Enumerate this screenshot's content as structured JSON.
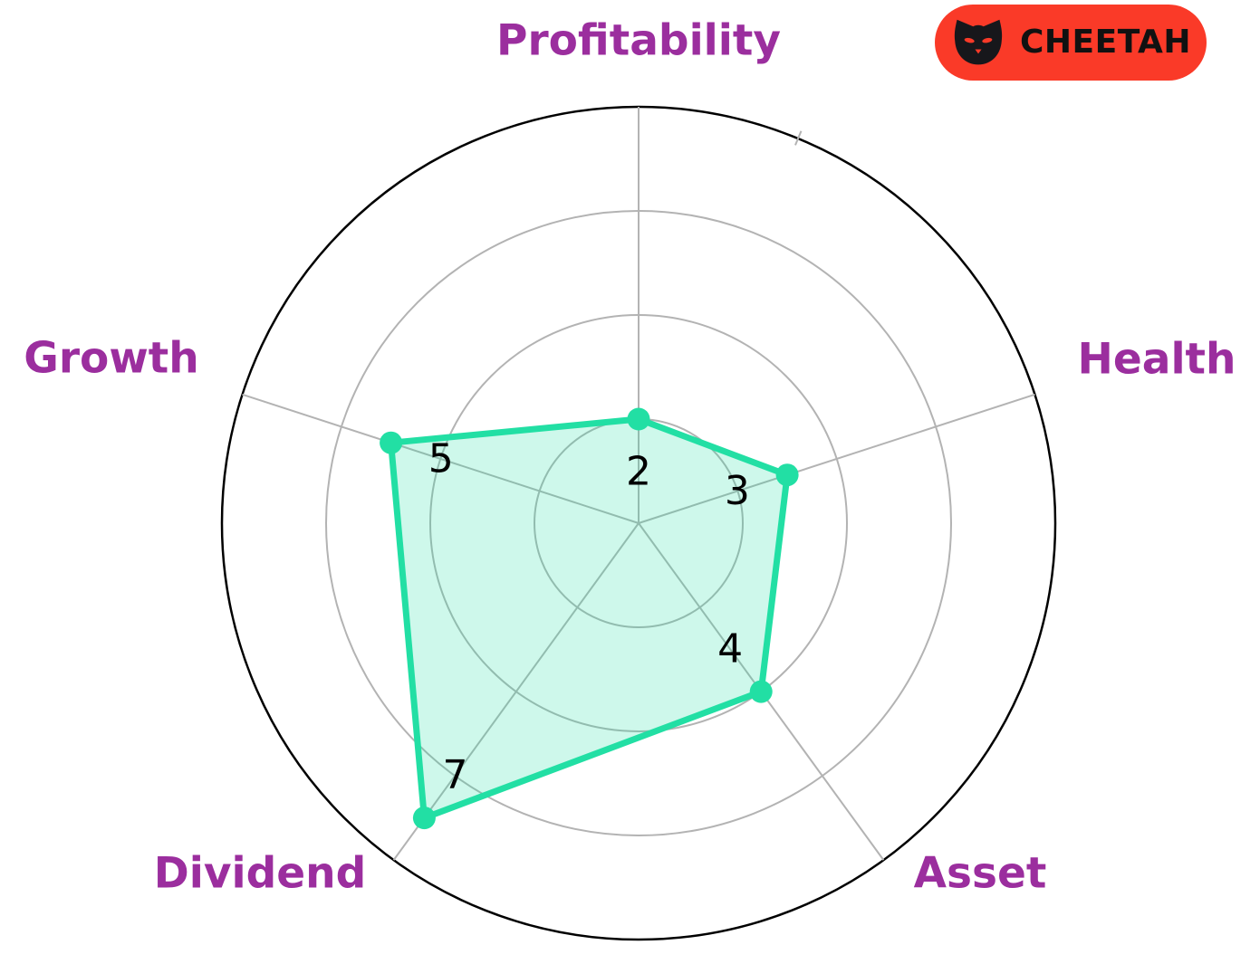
{
  "badge": {
    "label": "CHEETAH",
    "background_color": "#FA3A28",
    "text_color": "#111111",
    "icon": "cat-face-icon"
  },
  "chart_data": {
    "type": "radar",
    "title": "",
    "categories": [
      "Profitability",
      "Health",
      "Asset",
      "Dividend",
      "Growth"
    ],
    "values": [
      2,
      3,
      4,
      7,
      5
    ],
    "r_max": 8,
    "ring_step": 2,
    "rings": [
      2,
      4,
      6,
      8
    ],
    "grid": "on",
    "start_axis": "top",
    "direction": "clockwise",
    "colors": {
      "series": "#22DFA4",
      "series_fill_opacity": 0.22,
      "grid": "#B3B3B3",
      "outer_ring": "#000000",
      "axis_label": "#9B2E9E",
      "value_label": "#000000"
    }
  }
}
